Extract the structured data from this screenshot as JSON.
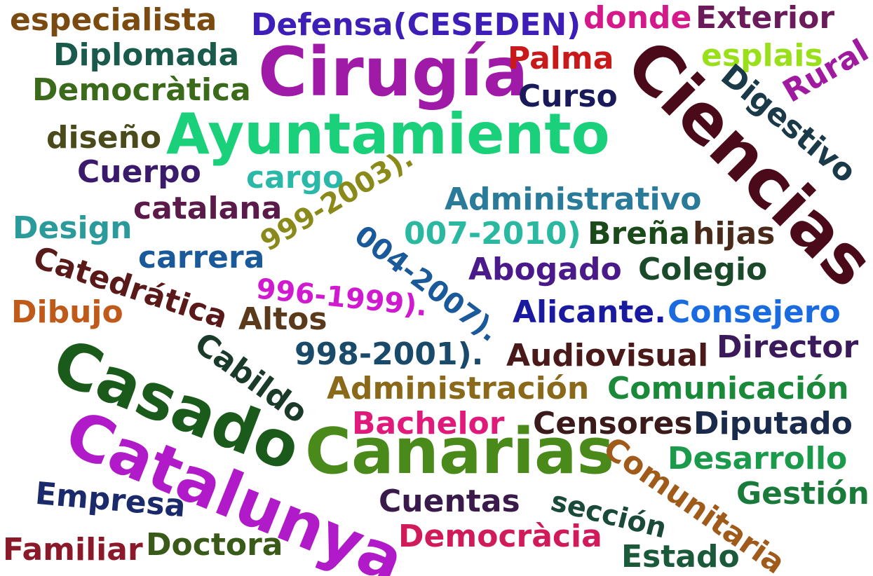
{
  "words": [
    {
      "text": "especialista",
      "color": "#7a4a10"
    },
    {
      "text": "Defensa(CESEDEN)",
      "color": "#3d1fb8"
    },
    {
      "text": "donde",
      "color": "#d41a8a"
    },
    {
      "text": "Exterior",
      "color": "#6b1a5a"
    },
    {
      "text": "Diplomada",
      "color": "#1a5a4a"
    },
    {
      "text": "Cirugía",
      "color": "#a01aa8"
    },
    {
      "text": "Palma",
      "color": "#c81a1a"
    },
    {
      "text": "esplais",
      "color": "#9ae01a"
    },
    {
      "text": "Ciencias",
      "color": "#4a0a1a"
    },
    {
      "text": "Rural",
      "color": "#a01aa0"
    },
    {
      "text": "Democràtica",
      "color": "#3a6a1a"
    },
    {
      "text": "Curso",
      "color": "#1a1a5a"
    },
    {
      "text": "Digestivo",
      "color": "#1a3a4a"
    },
    {
      "text": "diseño",
      "color": "#4a4a1a"
    },
    {
      "text": "Ayuntamiento",
      "color": "#1ad07a"
    },
    {
      "text": "Cuerpo",
      "color": "#3a1a6a"
    },
    {
      "text": "cargo",
      "color": "#2ab8a8"
    },
    {
      "text": "999-2003).",
      "color": "#8a8a1a"
    },
    {
      "text": "Administrativo",
      "color": "#2a7a9a"
    },
    {
      "text": "catalana",
      "color": "#5a1a4a"
    },
    {
      "text": "Design",
      "color": "#2a9a9a"
    },
    {
      "text": "004-2007).",
      "color": "#1a5a9a"
    },
    {
      "text": "007-2010)",
      "color": "#2ab8a0"
    },
    {
      "text": "Breña",
      "color": "#1a4a1a"
    },
    {
      "text": "hijas",
      "color": "#4a2a1a"
    },
    {
      "text": "carrera",
      "color": "#1a5a9a"
    },
    {
      "text": "Catedrática",
      "color": "#5a1a1a"
    },
    {
      "text": "Abogado",
      "color": "#4a1a8a"
    },
    {
      "text": "Colegio",
      "color": "#1a4a2a"
    },
    {
      "text": "996-1999).",
      "color": "#d01ad0"
    },
    {
      "text": "Dibujo",
      "color": "#c05a1a"
    },
    {
      "text": "Altos",
      "color": "#5a3a1a"
    },
    {
      "text": "Alicante.",
      "color": "#1a1aa0"
    },
    {
      "text": "Consejero",
      "color": "#1a6ae0"
    },
    {
      "text": "998-2001).",
      "color": "#1a4a6a"
    },
    {
      "text": "Director",
      "color": "#3a1a5a"
    },
    {
      "text": "Audiovisual",
      "color": "#4a1a1a"
    },
    {
      "text": "Cabildo",
      "color": "#1a3a2a"
    },
    {
      "text": "Casado",
      "color": "#1a5a1a"
    },
    {
      "text": "Administración",
      "color": "#8a6a1a"
    },
    {
      "text": "Comunicación",
      "color": "#1a8a3a"
    },
    {
      "text": "Bachelor",
      "color": "#e01a7a"
    },
    {
      "text": "Censores",
      "color": "#3a1a1a"
    },
    {
      "text": "Diputado",
      "color": "#1a2a4a"
    },
    {
      "text": "Canarias",
      "color": "#4a8a1a"
    },
    {
      "text": "Catalunya",
      "color": "#b01ac8"
    },
    {
      "text": "Desarrollo",
      "color": "#1a9a4a"
    },
    {
      "text": "Comunitaria",
      "color": "#a05a1a"
    },
    {
      "text": "Empresa",
      "color": "#1a2a6a"
    },
    {
      "text": "Cuentas",
      "color": "#3a1a4a"
    },
    {
      "text": "sección",
      "color": "#1a4a3a"
    },
    {
      "text": "Gestión",
      "color": "#1a7a3a"
    },
    {
      "text": "Familiar",
      "color": "#8a1a2a"
    },
    {
      "text": "Doctora",
      "color": "#3a5a1a"
    },
    {
      "text": "Democràcia",
      "color": "#d01a5a"
    },
    {
      "text": "Estado",
      "color": "#1a5a3a"
    }
  ]
}
